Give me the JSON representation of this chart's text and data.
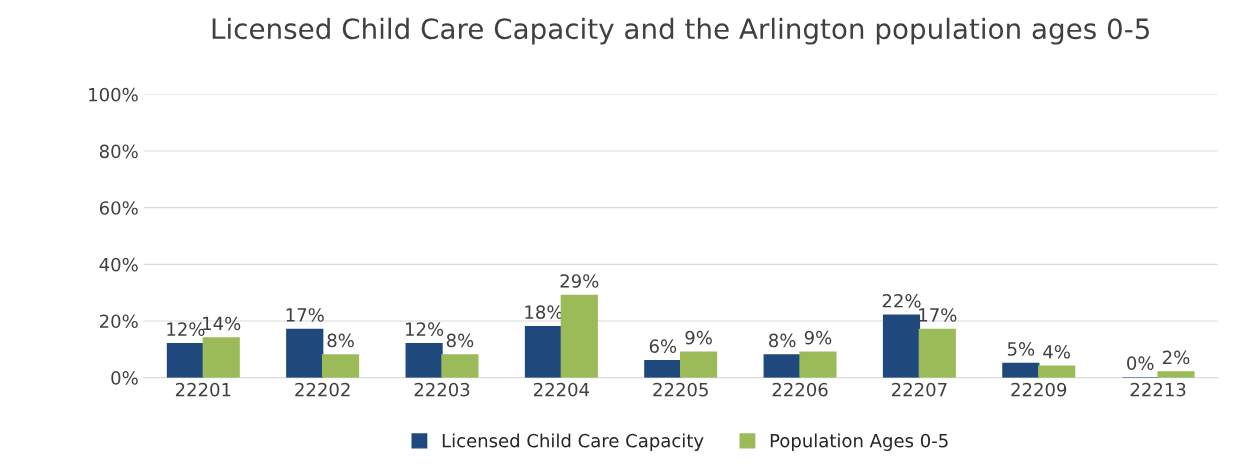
{
  "chart_data": {
    "type": "bar",
    "title": "Licensed Child Care Capacity and the Arlington population ages 0-5",
    "categories": [
      "22201",
      "22202",
      "22203",
      "22204",
      "22205",
      "22206",
      "22207",
      "22209",
      "22213"
    ],
    "series": [
      {
        "name": "Licensed Child Care Capacity",
        "color": "#1f497d",
        "values": [
          12,
          17,
          12,
          18,
          6,
          8,
          22,
          5,
          0
        ],
        "value_labels": [
          "12%",
          "17%",
          "12%",
          "18%",
          "6%",
          "8%",
          "22%",
          "5%",
          "0%"
        ]
      },
      {
        "name": "Population Ages 0-5",
        "color": "#9bbb59",
        "values": [
          14,
          8,
          8,
          29,
          9,
          9,
          17,
          4,
          2
        ],
        "value_labels": [
          "14%",
          "8%",
          "8%",
          "29%",
          "9%",
          "9%",
          "17%",
          "4%",
          "2%"
        ]
      }
    ],
    "ylim": [
      0,
      100
    ],
    "yticks": [
      {
        "value": 0,
        "label": "0%"
      },
      {
        "value": 20,
        "label": "20%"
      },
      {
        "value": 40,
        "label": "40%"
      },
      {
        "value": 60,
        "label": "60%"
      },
      {
        "value": 80,
        "label": "80%"
      },
      {
        "value": 100,
        "label": "100%"
      }
    ],
    "grid": "y",
    "legend": "bottom"
  }
}
